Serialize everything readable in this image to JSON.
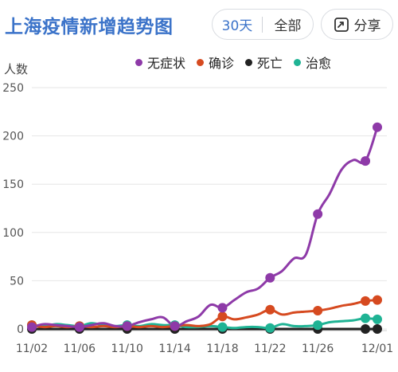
{
  "header": {
    "title": "上海疫情新增趋势图",
    "range_30": "30天",
    "range_all": "全部",
    "share_label": "分享"
  },
  "colors": {
    "accent": "#3b73c9",
    "asymptomatic": "#8e3aa8",
    "confirmed": "#d64a20",
    "death": "#222222",
    "recovered": "#1fb394"
  },
  "chart_data": {
    "type": "line",
    "title": "上海疫情新增趋势图",
    "ylabel": "人数",
    "xlabel": "",
    "ylim": [
      0,
      250
    ],
    "yticks": [
      "0",
      "50",
      "100",
      "150",
      "200",
      "250"
    ],
    "xticks": [
      "11/02",
      "11/06",
      "11/10",
      "11/14",
      "11/18",
      "11/22",
      "11/26",
      "12/01"
    ],
    "legend_position": "top-right",
    "x": [
      "11/02",
      "11/03",
      "11/04",
      "11/05",
      "11/06",
      "11/07",
      "11/08",
      "11/09",
      "11/10",
      "11/11",
      "11/12",
      "11/13",
      "11/14",
      "11/15",
      "11/16",
      "11/17",
      "11/18",
      "11/19",
      "11/20",
      "11/21",
      "11/22",
      "11/23",
      "11/24",
      "11/25",
      "11/26",
      "11/27",
      "11/28",
      "11/29",
      "11/30",
      "12/01"
    ],
    "series": [
      {
        "name": "无症状",
        "color": "#8e3aa8",
        "values": [
          2,
          5,
          4,
          3,
          2,
          4,
          6,
          3,
          3,
          7,
          10,
          12,
          3,
          8,
          13,
          25,
          22,
          30,
          38,
          42,
          53,
          60,
          73,
          77,
          119,
          140,
          165,
          175,
          174,
          209
        ]
      },
      {
        "name": "确诊",
        "color": "#d64a20",
        "values": [
          4,
          2,
          3,
          2,
          3,
          2,
          3,
          2,
          3,
          2,
          3,
          2,
          3,
          4,
          3,
          5,
          13,
          10,
          12,
          15,
          20,
          15,
          17,
          18,
          19,
          21,
          24,
          26,
          29,
          30
        ]
      },
      {
        "name": "死亡",
        "color": "#222222",
        "values": [
          0,
          0,
          0,
          0,
          0,
          0,
          0,
          0,
          0,
          0,
          0,
          0,
          0,
          0,
          0,
          0,
          0,
          0,
          0,
          0,
          0,
          0,
          0,
          0,
          0,
          0,
          0,
          0,
          0,
          0
        ]
      },
      {
        "name": "治愈",
        "color": "#1fb394",
        "values": [
          4,
          3,
          5,
          4,
          3,
          6,
          4,
          3,
          4,
          3,
          5,
          4,
          4,
          2,
          2,
          3,
          2,
          1,
          2,
          2,
          1,
          5,
          3,
          3,
          4,
          7,
          8,
          9,
          11,
          10
        ]
      }
    ],
    "markers": [
      0,
      4,
      8,
      12,
      16,
      20,
      24,
      28,
      29
    ]
  }
}
